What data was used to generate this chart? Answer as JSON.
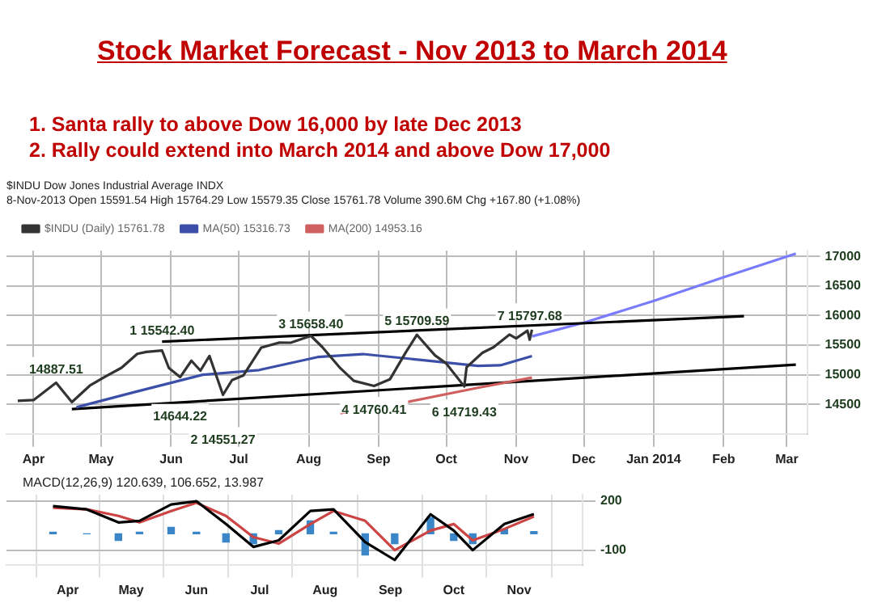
{
  "chart_data": [
    {
      "type": "line",
      "title": "Stock Market Forecast - Nov 2013 to March 2014",
      "annotations": [
        "1. Santa rally to above Dow 16,000 by late Dec 2013",
        "2. Rally could extend into March 2014 and above Dow 17,000",
        "$INDU Dow Jones Industrial Average INDX",
        "8-Nov-2013  Open 15591.54  High 15764.29  Low 15579.35  Close 15761.78  Volume 390.6M  Chg +167.80 (+1.08%)",
        {
          "text": "1 15542.40",
          "x": "2013-05-28",
          "y": 15542.4
        },
        {
          "text": "14887.51",
          "x": "2013-04-11",
          "y": 14887.51
        },
        {
          "text": "14644.22",
          "x": "2013-06-05",
          "y": 14644.22
        },
        {
          "text": "2 14551.27",
          "x": "2013-06-24",
          "y": 14551.27
        },
        {
          "text": "3 15658.40",
          "x": "2013-08-02",
          "y": 15658.4
        },
        {
          "text": "4 14760.41",
          "x": "2013-08-30",
          "y": 14760.41
        },
        {
          "text": "5 15709.59",
          "x": "2013-09-18",
          "y": 15709.59
        },
        {
          "text": "6 14719.43",
          "x": "2013-10-09",
          "y": 14719.43
        },
        {
          "text": "7 15797.68",
          "x": "2013-11-07",
          "y": 15797.68
        }
      ],
      "x": [
        "2013-03-25",
        "2013-04-01",
        "2013-04-11",
        "2013-04-18",
        "2013-04-26",
        "2013-05-03",
        "2013-05-10",
        "2013-05-17",
        "2013-05-21",
        "2013-05-28",
        "2013-05-31",
        "2013-06-05",
        "2013-06-10",
        "2013-06-14",
        "2013-06-18",
        "2013-06-24",
        "2013-06-28",
        "2013-07-03",
        "2013-07-11",
        "2013-07-19",
        "2013-07-24",
        "2013-08-02",
        "2013-08-07",
        "2013-08-15",
        "2013-08-21",
        "2013-08-30",
        "2013-09-06",
        "2013-09-13",
        "2013-09-18",
        "2013-09-26",
        "2013-10-01",
        "2013-10-09",
        "2013-10-10",
        "2013-10-17",
        "2013-10-22",
        "2013-10-29",
        "2013-11-01",
        "2013-11-06",
        "2013-11-07",
        "2013-11-08"
      ],
      "series": [
        {
          "name": "$INDU (Daily) 15761.78",
          "color": "#333333",
          "values": [
            14560,
            14572,
            14865,
            14537,
            14818,
            14973,
            15118,
            15354,
            15387,
            15409,
            15115,
            14960,
            15238,
            15070,
            15318,
            14660,
            14910,
            14988,
            15460,
            15543,
            15542,
            15658,
            15470,
            15112,
            14897,
            14810,
            14922,
            15376,
            15676,
            15328,
            15191,
            14802,
            15126,
            15371,
            15467,
            15680,
            15615,
            15746,
            15593,
            15761.78
          ]
        },
        {
          "name": "MA(50) 15316.73",
          "color": "#3b4fa8",
          "x": [
            "2013-04-20",
            "2013-05-15",
            "2013-06-15",
            "2013-07-10",
            "2013-08-05",
            "2013-08-25",
            "2013-09-20",
            "2013-10-15",
            "2013-10-25",
            "2013-11-08"
          ],
          "values": [
            14450,
            14700,
            15000,
            15080,
            15300,
            15350,
            15250,
            15150,
            15160,
            15316.73
          ]
        },
        {
          "name": "MA(200) 14953.16",
          "color": "#d06060",
          "x": [
            "2013-08-15",
            "2013-09-15",
            "2013-10-15",
            "2013-11-08"
          ],
          "values": [
            14350,
            14550,
            14780,
            14953.16
          ]
        },
        {
          "type": "line",
          "color": "#000000",
          "x": [
            "2013-05-28",
            "2014-02-10"
          ],
          "values": [
            15560,
            15990
          ]
        },
        {
          "type": "line",
          "color": "#000000",
          "x": [
            "2013-04-18",
            "2014-03-05"
          ],
          "values": [
            14420,
            15170
          ]
        },
        {
          "type": "line",
          "color": "#7b7bff",
          "x": [
            "2013-11-08",
            "2013-12-01",
            "2014-01-01",
            "2014-02-01",
            "2014-03-05"
          ],
          "values": [
            15650,
            15880,
            16250,
            16650,
            17050
          ]
        }
      ],
      "xlim": [
        "2013-03-20",
        "2014-03-10"
      ],
      "xticks": [
        {
          "value": "2013-04-01",
          "label": "Apr"
        },
        {
          "value": "2013-05-01",
          "label": "May"
        },
        {
          "value": "2013-06-01",
          "label": "Jun"
        },
        {
          "value": "2013-07-01",
          "label": "Jul"
        },
        {
          "value": "2013-08-01",
          "label": "Aug"
        },
        {
          "value": "2013-09-01",
          "label": "Sep"
        },
        {
          "value": "2013-10-01",
          "label": "Oct"
        },
        {
          "value": "2013-11-01",
          "label": "Nov"
        },
        {
          "value": "2013-12-01",
          "label": "Dec"
        },
        {
          "value": "2014-01-01",
          "label": "Jan 2014"
        },
        {
          "value": "2014-02-01",
          "label": "Feb"
        },
        {
          "value": "2014-03-01",
          "label": "Mar"
        }
      ],
      "ylim": [
        14000,
        17100
      ],
      "yticks": [
        14500,
        15000,
        15500,
        16000,
        16500,
        17000
      ],
      "grid": true,
      "legend": "top left"
    },
    {
      "type": "line",
      "title": "MACD(12,26,9) 120.639, 106.652, 13.987",
      "x": [
        "2013-03-25",
        "2013-04-10",
        "2013-04-25",
        "2013-05-05",
        "2013-05-20",
        "2013-06-01",
        "2013-06-15",
        "2013-06-28",
        "2013-07-10",
        "2013-07-25",
        "2013-08-05",
        "2013-08-20",
        "2013-09-03",
        "2013-09-20",
        "2013-10-01",
        "2013-10-10",
        "2013-10-25",
        "2013-11-08"
      ],
      "series": [
        {
          "color": "#000000",
          "values": [
            170,
            150,
            70,
            80,
            180,
            200,
            60,
            -80,
            -40,
            140,
            150,
            -50,
            -160,
            120,
            20,
            -100,
            60,
            120.639
          ]
        },
        {
          "color": "#cc4444",
          "values": [
            160,
            150,
            110,
            70,
            140,
            190,
            110,
            -20,
            -60,
            60,
            140,
            80,
            -100,
            20,
            60,
            -40,
            30,
            106.652
          ]
        },
        {
          "type": "bar",
          "color": "#3a86c8",
          "values": [
            10,
            0,
            -40,
            10,
            40,
            10,
            -50,
            -60,
            20,
            80,
            10,
            -130,
            -60,
            100,
            -40,
            -60,
            30,
            13.987
          ]
        }
      ],
      "xlim": [
        "2013-03-20",
        "2013-11-14"
      ],
      "xticks": [
        {
          "value": "2013-04-01",
          "label": "Apr"
        },
        {
          "value": "2013-05-01",
          "label": "May"
        },
        {
          "value": "2013-06-01",
          "label": "Jun"
        },
        {
          "value": "2013-07-01",
          "label": "Jul"
        },
        {
          "value": "2013-08-01",
          "label": "Aug"
        },
        {
          "value": "2013-09-01",
          "label": "Sep"
        },
        {
          "value": "2013-10-01",
          "label": "Oct"
        },
        {
          "value": "2013-11-01",
          "label": "Nov"
        }
      ],
      "ylim": [
        -190,
        240
      ],
      "yticks": [
        -100,
        200
      ],
      "grid": true
    }
  ]
}
